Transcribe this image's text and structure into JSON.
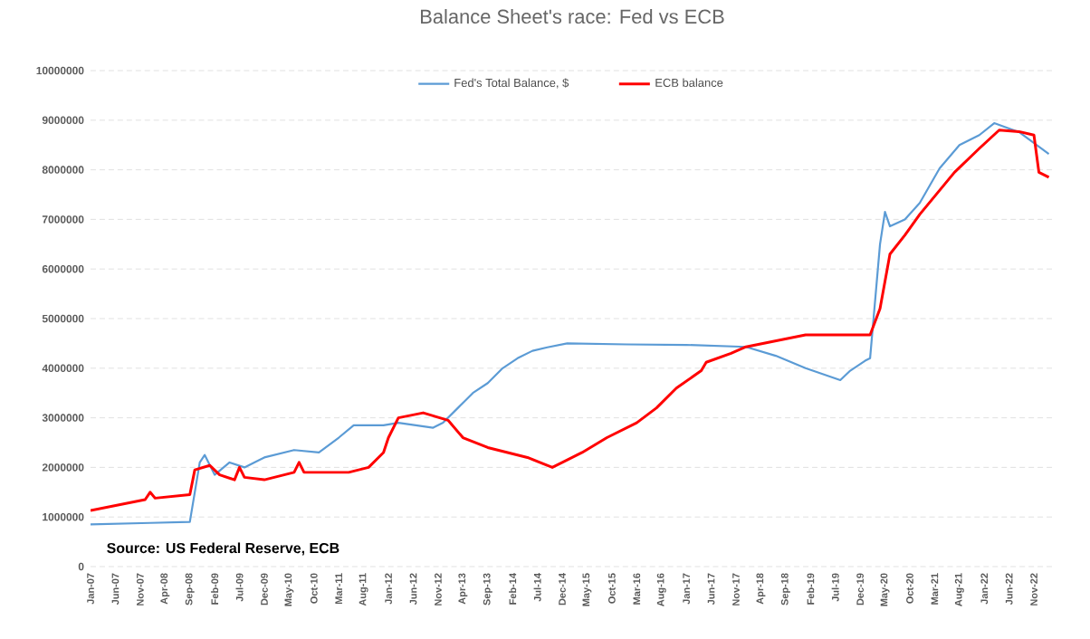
{
  "chart_data": {
    "type": "line",
    "title": "Balance Sheet's race: Fed vs ECB",
    "annotations": [
      "Source: US Federal Reserve, ECB"
    ],
    "xlim": [
      "2007-01",
      "2023-03"
    ],
    "xticks": [
      {
        "value": "2007-01",
        "label": "Jan-07"
      },
      {
        "value": "2007-06",
        "label": "Jun-07"
      },
      {
        "value": "2007-11",
        "label": "Nov-07"
      },
      {
        "value": "2008-04",
        "label": "Apr-08"
      },
      {
        "value": "2008-09",
        "label": "Sep-08"
      },
      {
        "value": "2009-02",
        "label": "Feb-09"
      },
      {
        "value": "2009-07",
        "label": "Jul-09"
      },
      {
        "value": "2009-12",
        "label": "Dec-09"
      },
      {
        "value": "2010-05",
        "label": "May-10"
      },
      {
        "value": "2010-10",
        "label": "Oct-10"
      },
      {
        "value": "2011-03",
        "label": "Mar-11"
      },
      {
        "value": "2011-08",
        "label": "Aug-11"
      },
      {
        "value": "2012-01",
        "label": "Jan-12"
      },
      {
        "value": "2012-06",
        "label": "Jun-12"
      },
      {
        "value": "2012-11",
        "label": "Nov-12"
      },
      {
        "value": "2013-04",
        "label": "Apr-13"
      },
      {
        "value": "2013-09",
        "label": "Sep-13"
      },
      {
        "value": "2014-02",
        "label": "Feb-14"
      },
      {
        "value": "2014-07",
        "label": "Jul-14"
      },
      {
        "value": "2014-12",
        "label": "Dec-14"
      },
      {
        "value": "2015-05",
        "label": "May-15"
      },
      {
        "value": "2015-10",
        "label": "Oct-15"
      },
      {
        "value": "2016-03",
        "label": "Mar-16"
      },
      {
        "value": "2016-08",
        "label": "Aug-16"
      },
      {
        "value": "2017-01",
        "label": "Jan-17"
      },
      {
        "value": "2017-06",
        "label": "Jun-17"
      },
      {
        "value": "2017-11",
        "label": "Nov-17"
      },
      {
        "value": "2018-04",
        "label": "Apr-18"
      },
      {
        "value": "2018-09",
        "label": "Sep-18"
      },
      {
        "value": "2019-02",
        "label": "Feb-19"
      },
      {
        "value": "2019-07",
        "label": "Jul-19"
      },
      {
        "value": "2019-12",
        "label": "Dec-19"
      },
      {
        "value": "2020-05",
        "label": "May-20"
      },
      {
        "value": "2020-10",
        "label": "Oct-20"
      },
      {
        "value": "2021-03",
        "label": "Mar-21"
      },
      {
        "value": "2021-08",
        "label": "Aug-21"
      },
      {
        "value": "2022-01",
        "label": "Jan-22"
      },
      {
        "value": "2022-06",
        "label": "Jun-22"
      },
      {
        "value": "2022-11",
        "label": "Nov-22"
      }
    ],
    "ylim": [
      0,
      10000000
    ],
    "yticks": [
      0,
      1000000,
      2000000,
      3000000,
      4000000,
      5000000,
      6000000,
      7000000,
      8000000,
      9000000,
      10000000
    ],
    "grid": "y",
    "legend": "top",
    "marker": "none",
    "line_style": "solid",
    "series": [
      {
        "name": "Fed's Total Balance, $",
        "color": "#5b9bd5",
        "x": [
          "2007-01",
          "2008-01",
          "2008-09",
          "2008-11",
          "2008-12",
          "2009-02",
          "2009-05",
          "2009-08",
          "2009-12",
          "2010-06",
          "2010-11",
          "2011-03",
          "2011-06",
          "2011-12",
          "2012-03",
          "2012-10",
          "2012-12",
          "2013-03",
          "2013-06",
          "2013-09",
          "2013-12",
          "2014-03",
          "2014-06",
          "2014-09",
          "2015-01",
          "2016-01",
          "2017-01",
          "2018-01",
          "2018-07",
          "2019-01",
          "2019-08",
          "2019-10",
          "2020-01",
          "2020-02",
          "2020-04",
          "2020-05",
          "2020-06",
          "2020-09",
          "2020-12",
          "2021-04",
          "2021-08",
          "2021-12",
          "2022-03",
          "2022-08",
          "2023-02"
        ],
        "values": [
          850000,
          880000,
          900000,
          2100000,
          2250000,
          1850000,
          2100000,
          2000000,
          2200000,
          2350000,
          2300000,
          2600000,
          2850000,
          2850000,
          2900000,
          2800000,
          2900000,
          3200000,
          3500000,
          3700000,
          4000000,
          4200000,
          4350000,
          4420000,
          4500000,
          4480000,
          4470000,
          4430000,
          4250000,
          4000000,
          3760000,
          3950000,
          4150000,
          4200000,
          6500000,
          7150000,
          6860000,
          7000000,
          7330000,
          8030000,
          8500000,
          8700000,
          8940000,
          8760000,
          8320000
        ]
      },
      {
        "name": "ECB balance",
        "color": "#ff0000",
        "x": [
          "2007-01",
          "2007-12",
          "2008-01",
          "2008-02",
          "2008-09",
          "2008-10",
          "2009-01",
          "2009-03",
          "2009-06",
          "2009-07",
          "2009-08",
          "2009-12",
          "2010-06",
          "2010-07",
          "2010-08",
          "2010-11",
          "2011-05",
          "2011-09",
          "2011-12",
          "2012-01",
          "2012-03",
          "2012-08",
          "2013-01",
          "2013-04",
          "2013-09",
          "2014-05",
          "2014-10",
          "2015-04",
          "2015-09",
          "2016-03",
          "2016-07",
          "2016-11",
          "2017-04",
          "2017-05",
          "2017-10",
          "2018-01",
          "2019-01",
          "2020-02",
          "2020-04",
          "2020-06",
          "2020-09",
          "2020-12",
          "2021-07",
          "2021-12",
          "2022-04",
          "2022-08",
          "2022-11",
          "2022-12",
          "2023-02"
        ],
        "values": [
          1130000,
          1350000,
          1500000,
          1380000,
          1450000,
          1950000,
          2040000,
          1850000,
          1750000,
          2000000,
          1800000,
          1750000,
          1900000,
          2100000,
          1900000,
          1900000,
          1900000,
          2000000,
          2300000,
          2600000,
          3000000,
          3100000,
          2950000,
          2600000,
          2400000,
          2200000,
          2000000,
          2300000,
          2600000,
          2900000,
          3200000,
          3600000,
          3950000,
          4120000,
          4300000,
          4430000,
          4670000,
          4670000,
          5200000,
          6300000,
          6680000,
          7100000,
          7950000,
          8430000,
          8800000,
          8770000,
          8700000,
          7950000,
          7850000
        ]
      }
    ]
  }
}
